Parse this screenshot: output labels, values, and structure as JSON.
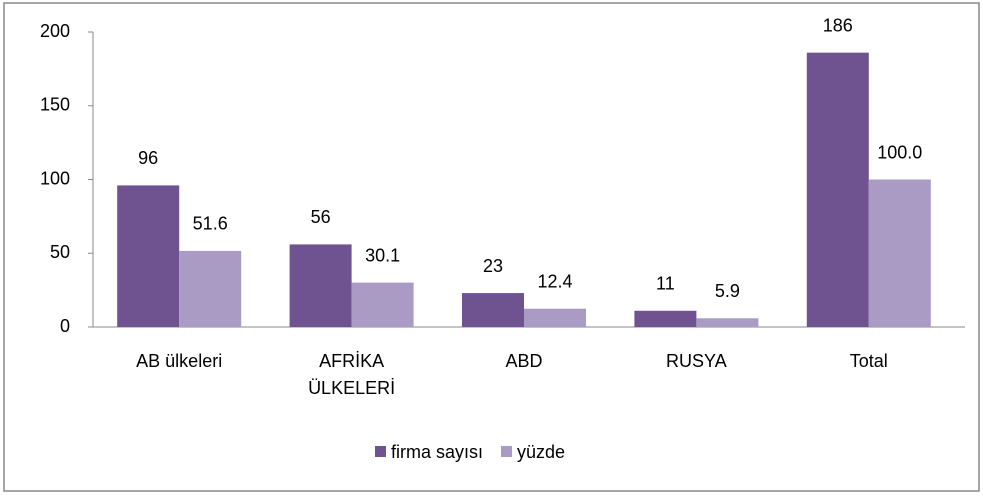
{
  "chart_data": {
    "type": "bar",
    "categories": [
      "AB ülkeleri",
      "AFRİKA ÜLKELERİ",
      "ABD",
      "RUSYA",
      "Total"
    ],
    "series": [
      {
        "name": "firma sayısı",
        "color": "#6f5391",
        "values": [
          96,
          56,
          23,
          11,
          186
        ]
      },
      {
        "name": "yüzde",
        "color": "#a99bc4",
        "values": [
          51.6,
          30.1,
          12.4,
          5.9,
          100.0
        ],
        "value_labels": [
          "51.6",
          "30.1",
          "12.4",
          "5.9",
          "100.0"
        ]
      }
    ],
    "ylim": [
      0,
      200
    ],
    "yticks": [
      0,
      50,
      100,
      150,
      200
    ],
    "grid": false,
    "legend": "bottom"
  }
}
